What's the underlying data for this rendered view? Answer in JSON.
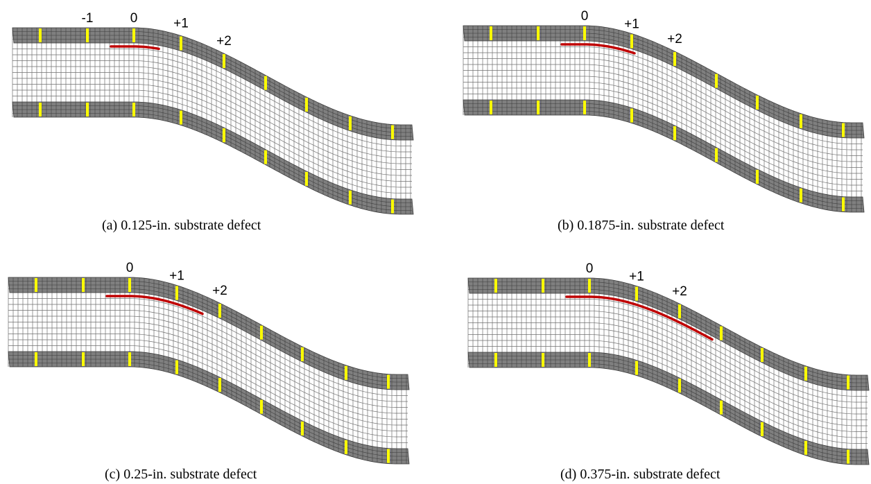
{
  "panels": [
    {
      "id": "a",
      "caption": "(a) 0.125-in. substrate defect",
      "markers": [
        "-1",
        "0",
        "+1",
        "+2"
      ],
      "defect_length": 0.125
    },
    {
      "id": "b",
      "caption": "(b) 0.1875-in. substrate defect",
      "markers": [
        "0",
        "+1",
        "+2"
      ],
      "defect_length": 0.1875
    },
    {
      "id": "c",
      "caption": "(c) 0.25-in. substrate defect",
      "markers": [
        "0",
        "+1",
        "+2"
      ],
      "defect_length": 0.25
    },
    {
      "id": "d",
      "caption": "(d) 0.375-in. substrate defect",
      "markers": [
        "0",
        "+1",
        "+2"
      ],
      "defect_length": 0.375
    }
  ],
  "colors": {
    "face_sheet": "#7f7f7f",
    "core_mesh_line": "#555555",
    "tick": "#ffff00",
    "crack": "#c00000"
  }
}
